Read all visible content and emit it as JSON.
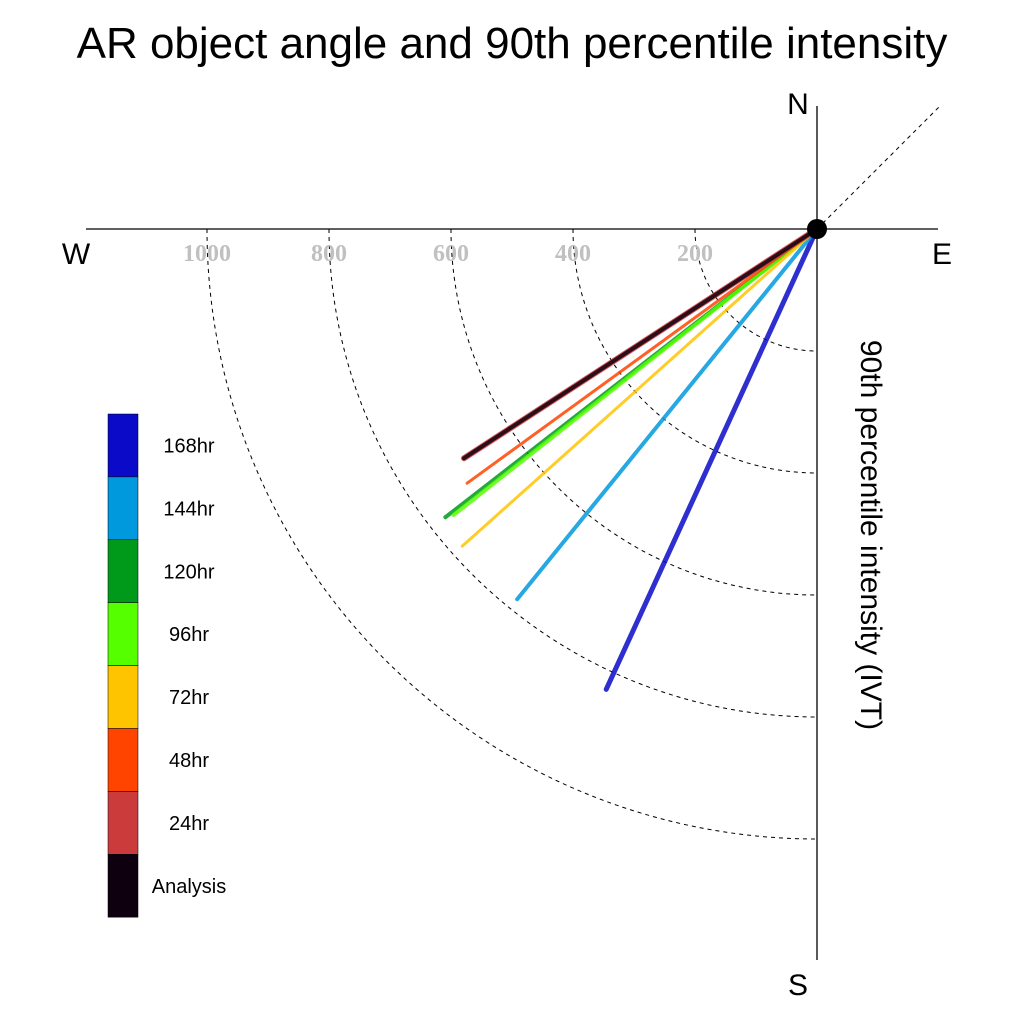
{
  "chart_data": {
    "type": "polar-vector",
    "title": "AR object angle and 90th percentile intensity",
    "ylabel": "90th percentile intensity (IVT)",
    "directions": {
      "north": "N",
      "south": "S",
      "east": "E",
      "west": "W"
    },
    "radial_ticks": [
      {
        "value": 200,
        "label": "200"
      },
      {
        "value": 400,
        "label": "400"
      },
      {
        "value": 600,
        "label": "600"
      },
      {
        "value": 800,
        "label": "800"
      },
      {
        "value": 1000,
        "label": "1000"
      }
    ],
    "rlim": [
      0,
      1000
    ],
    "series": [
      {
        "name": "168hr",
        "color": "#0a0ac8",
        "intensity": 830,
        "angle_below_west_deg": 65.4
      },
      {
        "name": "144hr",
        "color": "#0099dd",
        "intensity": 781,
        "angle_below_west_deg": 51.0
      },
      {
        "name": "120hr",
        "color": "#009a1a",
        "intensity": 771,
        "angle_below_west_deg": 37.8
      },
      {
        "name": "96hr",
        "color": "#55ff00",
        "intensity": 758,
        "angle_below_west_deg": 38.2
      },
      {
        "name": "72hr",
        "color": "#ffc400",
        "intensity": 780,
        "angle_below_west_deg": 41.8
      },
      {
        "name": "48hr",
        "color": "#ff4400",
        "intensity": 709,
        "angle_below_west_deg": 36.0
      },
      {
        "name": "24hr",
        "color": "#cc3b3b",
        "intensity": 690,
        "angle_below_west_deg": 33.0
      },
      {
        "name": "Analysis",
        "color": "#0e000e",
        "intensity": 690,
        "angle_below_west_deg": 33.0
      }
    ],
    "legend_placement": "left",
    "grid": true
  }
}
